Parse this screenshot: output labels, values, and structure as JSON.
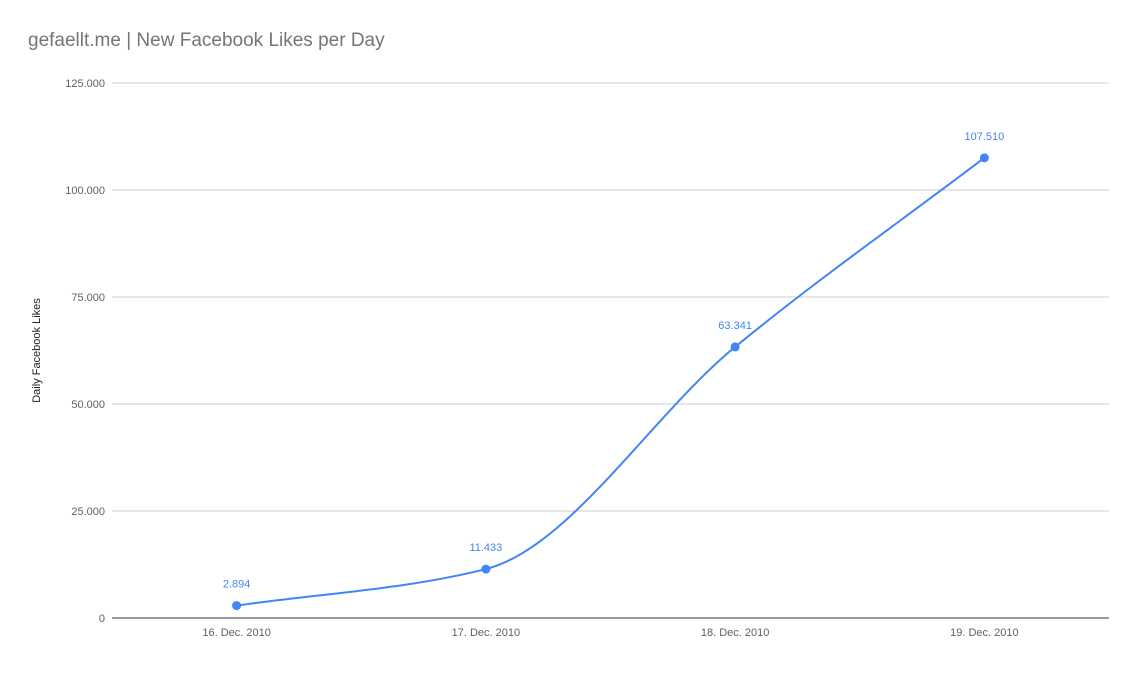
{
  "chart_data": {
    "type": "line",
    "title": "gefaellt.me | New Facebook Likes per Day",
    "xlabel": "",
    "ylabel": "Daily Facebook Likes",
    "categories": [
      "16. Dec. 2010",
      "17. Dec. 2010",
      "18. Dec. 2010",
      "19. Dec. 2010"
    ],
    "series": [
      {
        "values": [
          2894,
          11433,
          63341,
          107510
        ],
        "data_labels": [
          "2.894",
          "11.433",
          "63.341",
          "107.510"
        ],
        "color": "#4285f4"
      }
    ],
    "ylim": [
      0,
      125000
    ],
    "yticks": [
      0,
      25000,
      50000,
      75000,
      100000,
      125000
    ],
    "ytick_labels": [
      "0",
      "25.000",
      "50.000",
      "75.000",
      "100.000",
      "125.000"
    ],
    "grid": true,
    "smooth": true,
    "legend": "none"
  },
  "colors": {
    "grid": "#cccccc",
    "axis": "#333333",
    "series": "#4285f4"
  }
}
